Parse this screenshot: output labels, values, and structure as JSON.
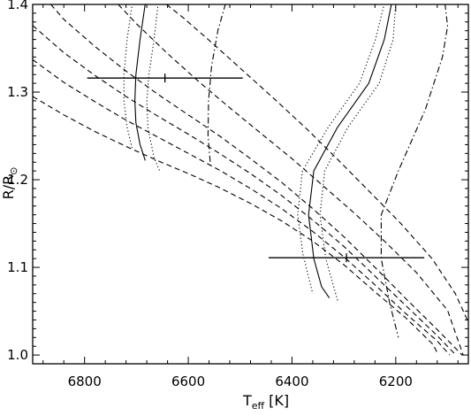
{
  "chart_data": {
    "type": "line",
    "title": "",
    "xlabel": "T",
    "xlabel_sub": "eff",
    "xlabel_unit": "[K]",
    "ylabel": "R/R",
    "ylabel_sub": "⊙",
    "xlim": [
      6900,
      6060
    ],
    "ylim": [
      0.99,
      1.4
    ],
    "x_ticks": [
      6800,
      6600,
      6400,
      6200
    ],
    "x_tick_labels": [
      "6800",
      "6600",
      "6400",
      "6200"
    ],
    "y_ticks": [
      1.0,
      1.1,
      1.2,
      1.3,
      1.4
    ],
    "y_tick_labels": [
      "1.0",
      "1.1",
      "1.2",
      "1.3",
      "1.4"
    ],
    "grid": false,
    "legend": "none",
    "colors": {
      "line": "#000000",
      "background": "#ffffff"
    },
    "series": [
      {
        "style": "solid",
        "points": [
          [
            6683,
            1.401
          ],
          [
            6693,
            1.36
          ],
          [
            6701,
            1.32
          ],
          [
            6703,
            1.29
          ],
          [
            6701,
            1.265
          ],
          [
            6693,
            1.24
          ],
          [
            6683,
            1.222
          ]
        ]
      },
      {
        "style": "dotted",
        "points": [
          [
            6708,
            1.401
          ],
          [
            6718,
            1.36
          ],
          [
            6724,
            1.32
          ],
          [
            6724,
            1.29
          ],
          [
            6718,
            1.26
          ],
          [
            6708,
            1.235
          ]
        ]
      },
      {
        "style": "dotted",
        "points": [
          [
            6658,
            1.401
          ],
          [
            6666,
            1.36
          ],
          [
            6676,
            1.32
          ],
          [
            6680,
            1.29
          ],
          [
            6678,
            1.26
          ],
          [
            6666,
            1.225
          ],
          [
            6655,
            1.21
          ]
        ]
      },
      {
        "style": "solid",
        "points": [
          [
            6208,
            1.401
          ],
          [
            6222,
            1.36
          ],
          [
            6252,
            1.31
          ],
          [
            6312,
            1.26
          ],
          [
            6358,
            1.21
          ],
          [
            6368,
            1.16
          ],
          [
            6358,
            1.11
          ],
          [
            6343,
            1.078
          ],
          [
            6328,
            1.065
          ]
        ]
      },
      {
        "style": "dotted",
        "points": [
          [
            6222,
            1.401
          ],
          [
            6239,
            1.36
          ],
          [
            6270,
            1.31
          ],
          [
            6330,
            1.26
          ],
          [
            6380,
            1.21
          ],
          [
            6389,
            1.16
          ],
          [
            6379,
            1.115
          ],
          [
            6360,
            1.07
          ]
        ]
      },
      {
        "style": "dotted",
        "points": [
          [
            6200,
            1.401
          ],
          [
            6205,
            1.36
          ],
          [
            6232,
            1.31
          ],
          [
            6292,
            1.26
          ],
          [
            6337,
            1.21
          ],
          [
            6346,
            1.16
          ],
          [
            6335,
            1.11
          ],
          [
            6311,
            1.06
          ]
        ]
      },
      {
        "style": "dashdot",
        "points": [
          [
            6528,
            1.401
          ],
          [
            6543,
            1.37
          ],
          [
            6555,
            1.33
          ],
          [
            6561,
            1.29
          ],
          [
            6562,
            1.25
          ],
          [
            6557,
            1.215
          ]
        ]
      },
      {
        "style": "dashdot",
        "points": [
          [
            6105,
            1.401
          ],
          [
            6100,
            1.375
          ],
          [
            6110,
            1.34
          ],
          [
            6143,
            1.28
          ],
          [
            6195,
            1.21
          ],
          [
            6228,
            1.16
          ],
          [
            6228,
            1.11
          ],
          [
            6212,
            1.06
          ],
          [
            6195,
            1.02
          ]
        ]
      },
      {
        "style": "dashed",
        "points": [
          [
            6900,
            1.295
          ],
          [
            6840,
            1.274
          ],
          [
            6780,
            1.255
          ],
          [
            6720,
            1.238
          ],
          [
            6660,
            1.222
          ],
          [
            6600,
            1.207
          ],
          [
            6540,
            1.191
          ],
          [
            6480,
            1.173
          ],
          [
            6420,
            1.153
          ],
          [
            6360,
            1.13
          ],
          [
            6300,
            1.103
          ],
          [
            6240,
            1.072
          ],
          [
            6180,
            1.042
          ],
          [
            6128,
            1.012
          ],
          [
            6118,
            1.0
          ]
        ]
      },
      {
        "style": "dashed",
        "points": [
          [
            6900,
            1.337
          ],
          [
            6840,
            1.311
          ],
          [
            6780,
            1.289
          ],
          [
            6720,
            1.268
          ],
          [
            6660,
            1.249
          ],
          [
            6600,
            1.23
          ],
          [
            6540,
            1.211
          ],
          [
            6480,
            1.19
          ],
          [
            6420,
            1.167
          ],
          [
            6360,
            1.141
          ],
          [
            6300,
            1.112
          ],
          [
            6240,
            1.08
          ],
          [
            6180,
            1.047
          ],
          [
            6120,
            1.016
          ],
          [
            6096,
            1.0
          ]
        ]
      },
      {
        "style": "dashed",
        "points": [
          [
            6900,
            1.376
          ],
          [
            6840,
            1.345
          ],
          [
            6780,
            1.319
          ],
          [
            6720,
            1.295
          ],
          [
            6660,
            1.273
          ],
          [
            6600,
            1.252
          ],
          [
            6540,
            1.23
          ],
          [
            6480,
            1.207
          ],
          [
            6420,
            1.182
          ],
          [
            6360,
            1.154
          ],
          [
            6300,
            1.124
          ],
          [
            6240,
            1.09
          ],
          [
            6180,
            1.056
          ],
          [
            6120,
            1.022
          ],
          [
            6084,
            1.0
          ]
        ]
      },
      {
        "style": "dashed",
        "points": [
          [
            6865,
            1.4
          ],
          [
            6840,
            1.383
          ],
          [
            6780,
            1.352
          ],
          [
            6720,
            1.324
          ],
          [
            6660,
            1.298
          ],
          [
            6600,
            1.274
          ],
          [
            6540,
            1.25
          ],
          [
            6480,
            1.224
          ],
          [
            6420,
            1.197
          ],
          [
            6360,
            1.167
          ],
          [
            6300,
            1.135
          ],
          [
            6240,
            1.1
          ],
          [
            6180,
            1.064
          ],
          [
            6120,
            1.029
          ],
          [
            6072,
            1.0
          ]
        ]
      },
      {
        "style": "dashed",
        "points": [
          [
            6735,
            1.4
          ],
          [
            6700,
            1.378
          ],
          [
            6640,
            1.344
          ],
          [
            6580,
            1.312
          ],
          [
            6520,
            1.282
          ],
          [
            6460,
            1.253
          ],
          [
            6400,
            1.224
          ],
          [
            6340,
            1.193
          ],
          [
            6280,
            1.162
          ],
          [
            6220,
            1.129
          ],
          [
            6160,
            1.094
          ],
          [
            6100,
            1.051
          ],
          [
            6070,
            1.0
          ]
        ]
      },
      {
        "style": "dashed",
        "points": [
          [
            6642,
            1.4
          ],
          [
            6610,
            1.385
          ],
          [
            6550,
            1.354
          ],
          [
            6490,
            1.322
          ],
          [
            6430,
            1.29
          ],
          [
            6370,
            1.257
          ],
          [
            6310,
            1.222
          ],
          [
            6250,
            1.186
          ],
          [
            6190,
            1.15
          ],
          [
            6130,
            1.11
          ],
          [
            6085,
            1.07
          ],
          [
            6062,
            1.04
          ]
        ]
      }
    ],
    "error_bars": [
      {
        "x": 6645,
        "y": 1.316,
        "xerr": 150
      },
      {
        "x": 6295,
        "y": 1.111,
        "xerr": 150
      }
    ]
  }
}
